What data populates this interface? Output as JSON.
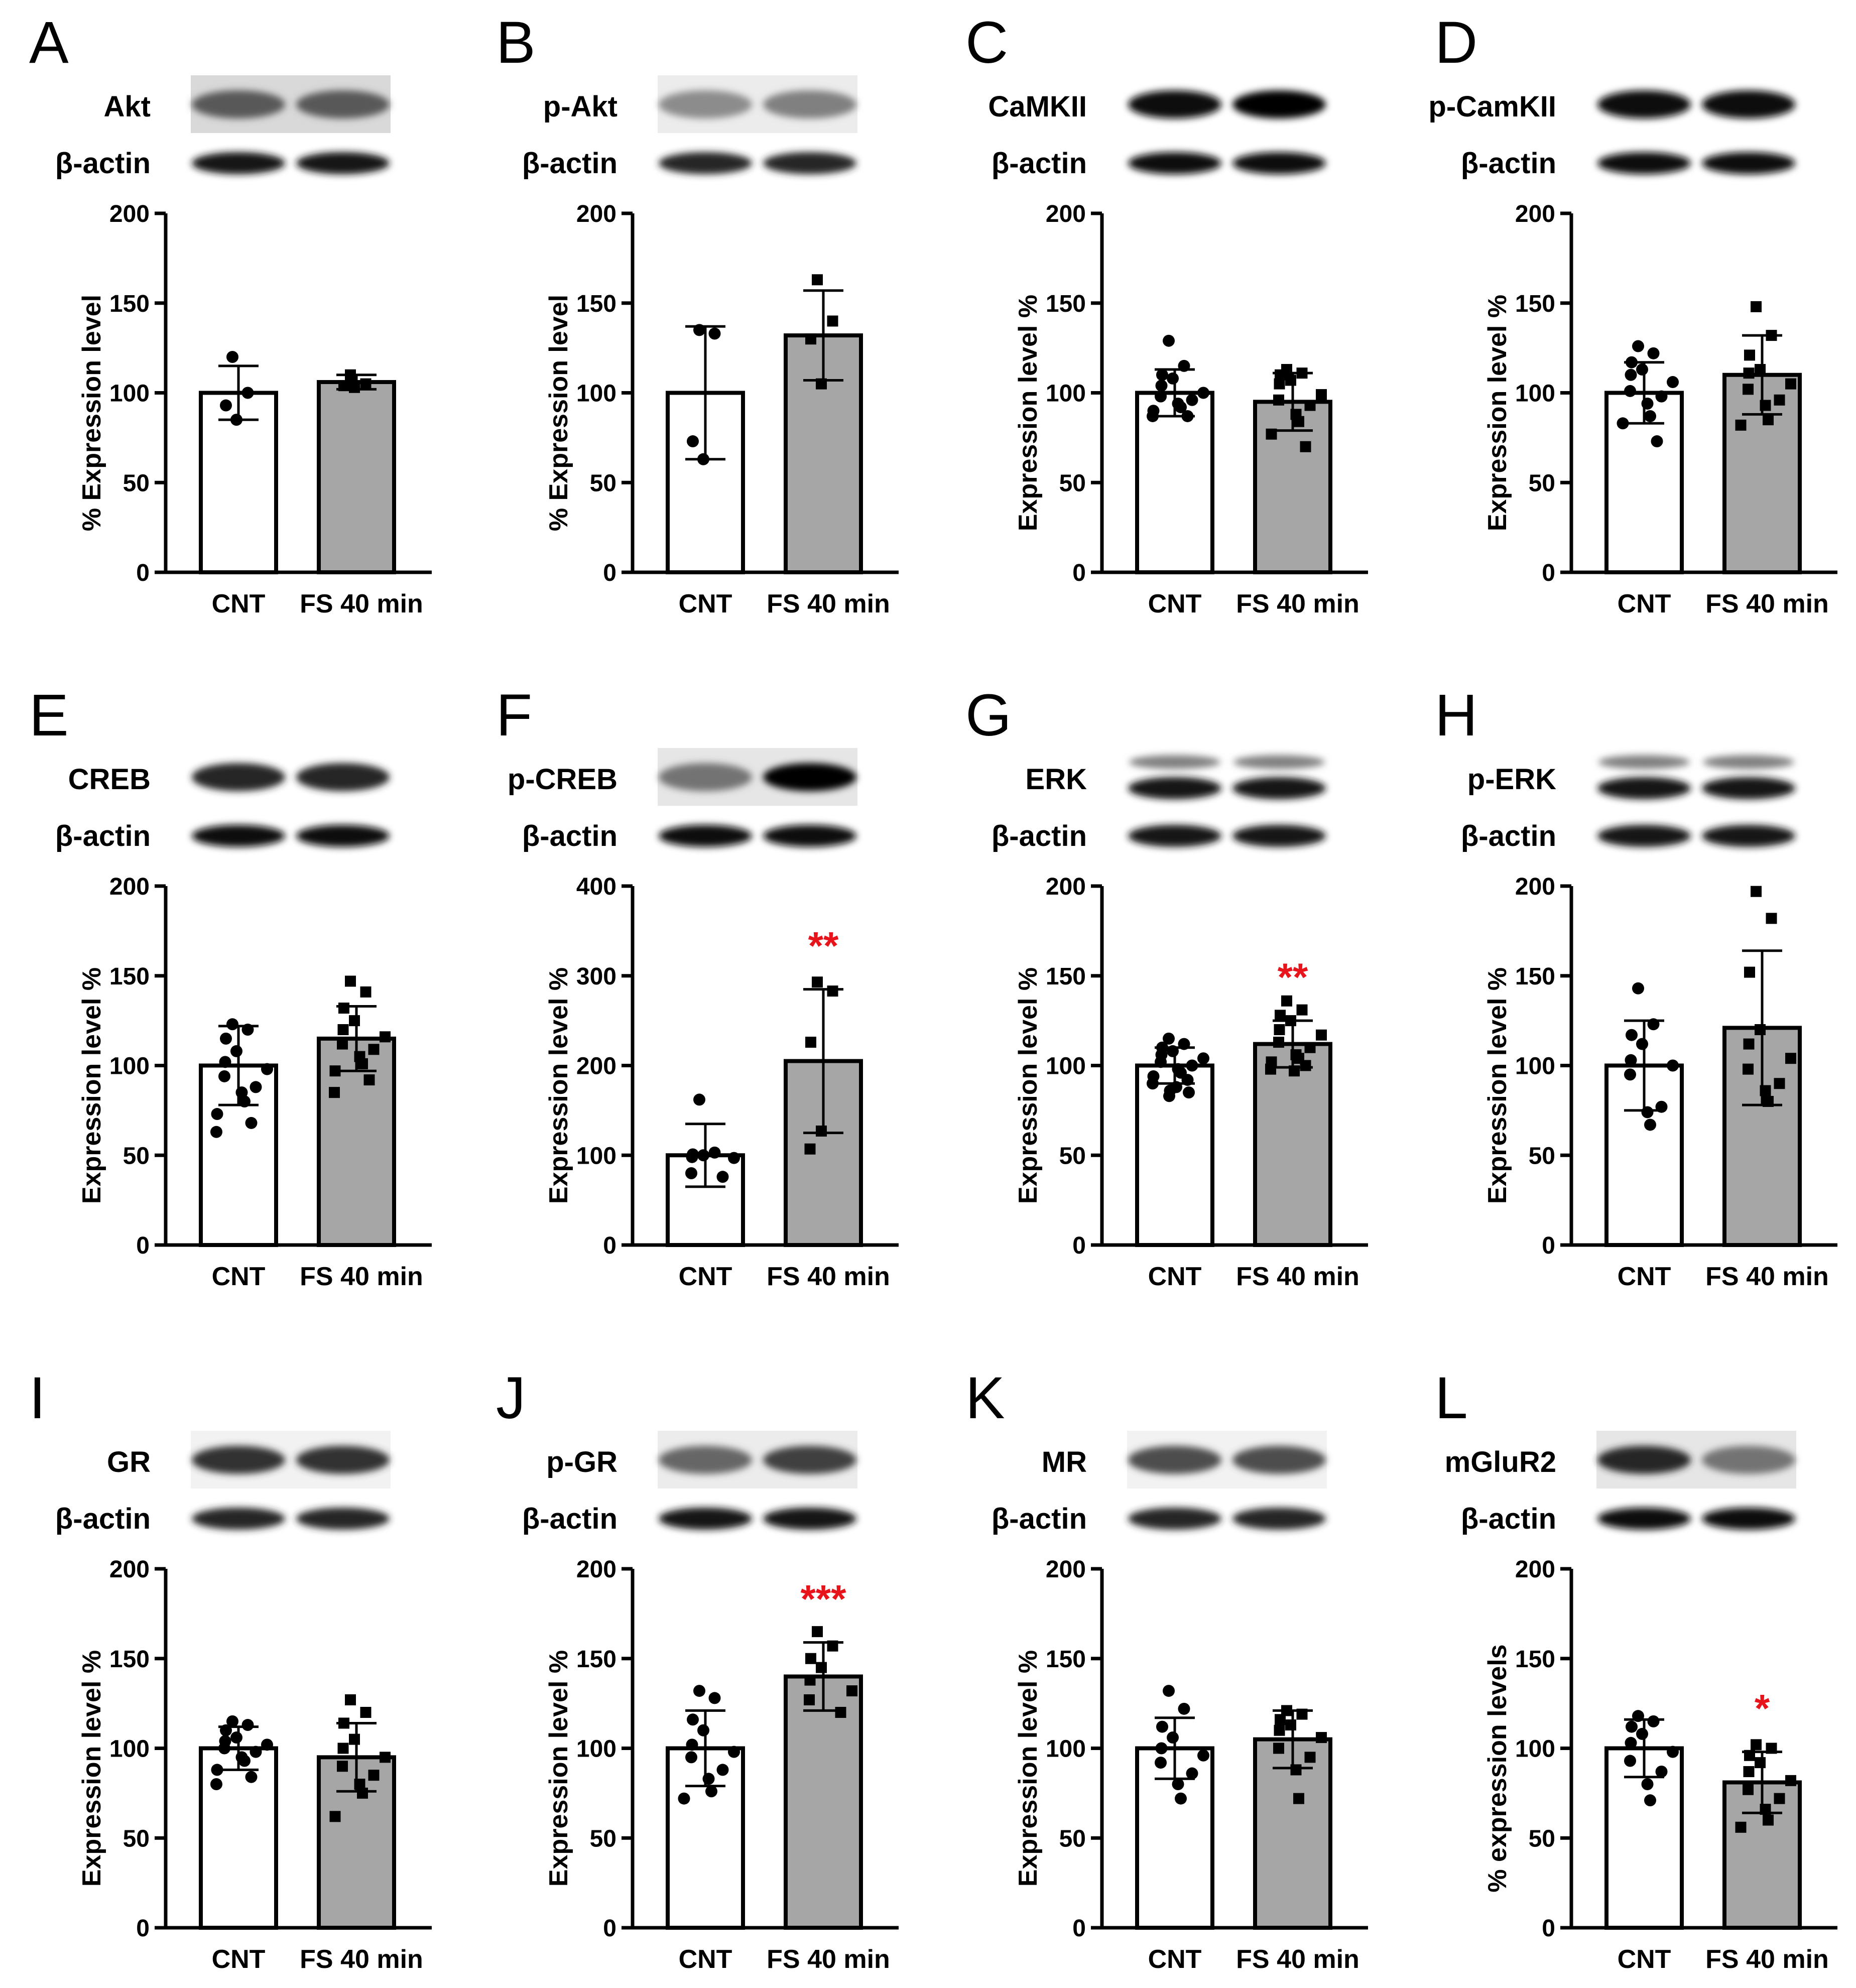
{
  "figure": {
    "colors": {
      "bar_cnt": "#ffffff",
      "bar_fs": "#a6a6a6",
      "outline": "#000000",
      "significance": "#e8141b"
    },
    "blot_secondary_label": "β-actin",
    "categories": [
      "CNT",
      "FS 40 min"
    ]
  },
  "chart_data": [
    {
      "panel": "A",
      "protein": "Akt",
      "type": "bar",
      "ylabel": "% Expression level",
      "ylim": [
        0,
        200
      ],
      "yticks": [
        "0",
        "50",
        "100",
        "150",
        "200"
      ],
      "categories": [
        "CNT",
        "FS 40 min"
      ],
      "values": [
        100,
        106
      ],
      "errors": [
        15,
        4
      ],
      "significance": "",
      "points": [
        [
          120,
          100,
          93,
          85
        ],
        [
          110,
          105,
          104,
          103
        ]
      ],
      "blot": {
        "bands": 1,
        "background": "#d9d9d9",
        "intensity": [
          0.65,
          0.65
        ],
        "actin_intensity": [
          0.9,
          0.9
        ]
      }
    },
    {
      "panel": "B",
      "protein": "p-Akt",
      "type": "bar",
      "ylabel": "% Expression level",
      "ylim": [
        0,
        200
      ],
      "yticks": [
        "0",
        "50",
        "100",
        "150",
        "200"
      ],
      "categories": [
        "CNT",
        "FS 40 min"
      ],
      "values": [
        100,
        132
      ],
      "errors": [
        37,
        25
      ],
      "significance": "",
      "points": [
        [
          135,
          133,
          73,
          63
        ],
        [
          163,
          140,
          130,
          105
        ]
      ],
      "blot": {
        "bands": 1,
        "background": "#ececec",
        "intensity": [
          0.45,
          0.5
        ],
        "actin_intensity": [
          0.85,
          0.85
        ]
      }
    },
    {
      "panel": "C",
      "protein": "CaMKII",
      "type": "bar",
      "ylabel": "Expression level %",
      "ylim": [
        0,
        200
      ],
      "yticks": [
        "0",
        "50",
        "100",
        "150",
        "200"
      ],
      "categories": [
        "CNT",
        "FS 40 min"
      ],
      "values": [
        100,
        95
      ],
      "errors": [
        13,
        16
      ],
      "significance": "",
      "points": [
        [
          129,
          115,
          110,
          108,
          104,
          100,
          98,
          96,
          94,
          92,
          90,
          87,
          87
        ],
        [
          113,
          111,
          110,
          107,
          105,
          99,
          96,
          93,
          88,
          84,
          77,
          70
        ]
      ],
      "blot": {
        "bands": 1,
        "background": "#ffffff",
        "intensity": [
          0.95,
          0.98
        ],
        "actin_intensity": [
          0.95,
          0.95
        ]
      }
    },
    {
      "panel": "D",
      "protein": "p-CamKII",
      "type": "bar",
      "ylabel": "Expression level %",
      "ylim": [
        0,
        200
      ],
      "yticks": [
        "0",
        "50",
        "100",
        "150",
        "200"
      ],
      "categories": [
        "CNT",
        "FS 40 min"
      ],
      "values": [
        100,
        110
      ],
      "errors": [
        17,
        22
      ],
      "significance": "",
      "points": [
        [
          126,
          122,
          117,
          113,
          110,
          106,
          101,
          98,
          94,
          87,
          83,
          73
        ],
        [
          148,
          132,
          121,
          113,
          111,
          105,
          102,
          96,
          93,
          85,
          82
        ]
      ],
      "blot": {
        "bands": 1,
        "background": "#ffffff",
        "intensity": [
          0.95,
          0.95
        ],
        "actin_intensity": [
          0.95,
          0.95
        ]
      }
    },
    {
      "panel": "E",
      "protein": "CREB",
      "type": "bar",
      "ylabel": "Expression level %",
      "ylim": [
        0,
        200
      ],
      "yticks": [
        "0",
        "50",
        "100",
        "150",
        "200"
      ],
      "categories": [
        "CNT",
        "FS 40 min"
      ],
      "values": [
        100,
        115
      ],
      "errors": [
        22,
        18
      ],
      "significance": "",
      "points": [
        [
          123,
          120,
          115,
          108,
          102,
          98,
          94,
          88,
          85,
          80,
          73,
          68,
          63
        ],
        [
          147,
          141,
          132,
          125,
          120,
          116,
          112,
          109,
          105,
          101,
          97,
          92,
          85
        ]
      ],
      "blot": {
        "bands": 1,
        "background": "#ffffff",
        "intensity": [
          0.85,
          0.85
        ],
        "actin_intensity": [
          0.95,
          0.95
        ]
      }
    },
    {
      "panel": "F",
      "protein": "p-CREB",
      "type": "bar",
      "ylabel": "Expression level %",
      "ylim": [
        0,
        400
      ],
      "yticks": [
        "0",
        "100",
        "200",
        "300",
        "400"
      ],
      "categories": [
        "CNT",
        "FS 40 min"
      ],
      "values": [
        100,
        205
      ],
      "errors": [
        35,
        80
      ],
      "significance": "**",
      "points": [
        [
          162,
          103,
          101,
          100,
          98,
          97,
          80,
          76
        ],
        [
          293,
          283,
          226,
          127,
          107
        ]
      ],
      "blot": {
        "bands": 1,
        "background": "#e6e6e6",
        "intensity": [
          0.55,
          0.98
        ],
        "actin_intensity": [
          0.95,
          0.95
        ]
      }
    },
    {
      "panel": "G",
      "protein": "ERK",
      "type": "bar",
      "ylabel": "Expression level %",
      "ylim": [
        0,
        200
      ],
      "yticks": [
        "0",
        "50",
        "100",
        "150",
        "200"
      ],
      "categories": [
        "CNT",
        "FS 40 min"
      ],
      "values": [
        100,
        112
      ],
      "errors": [
        10,
        13
      ],
      "significance": "**",
      "points": [
        [
          115,
          112,
          110,
          108,
          106,
          104,
          102,
          100,
          98,
          96,
          94,
          92,
          90,
          88,
          86,
          85,
          83
        ],
        [
          136,
          131,
          128,
          125,
          120,
          117,
          113,
          110,
          106,
          104,
          102,
          100,
          98,
          97
        ]
      ],
      "blot": {
        "bands": 2,
        "background": "#ffffff",
        "intensity": [
          0.9,
          0.9
        ],
        "actin_intensity": [
          0.9,
          0.9
        ]
      }
    },
    {
      "panel": "H",
      "protein": "p-ERK",
      "type": "bar",
      "ylabel": "Expression level %",
      "ylim": [
        0,
        200
      ],
      "yticks": [
        "0",
        "50",
        "100",
        "150",
        "200"
      ],
      "categories": [
        "CNT",
        "FS 40 min"
      ],
      "values": [
        100,
        121
      ],
      "errors": [
        25,
        43
      ],
      "significance": "",
      "points": [
        [
          143,
          123,
          117,
          112,
          103,
          100,
          95,
          77,
          74,
          67
        ],
        [
          197,
          182,
          152,
          120,
          112,
          104,
          98,
          90,
          86,
          80
        ]
      ],
      "blot": {
        "bands": 2,
        "background": "#ffffff",
        "intensity": [
          0.9,
          0.9
        ],
        "actin_intensity": [
          0.9,
          0.9
        ]
      }
    },
    {
      "panel": "I",
      "protein": "GR",
      "type": "bar",
      "ylabel": "Expression level %",
      "ylim": [
        0,
        200
      ],
      "yticks": [
        "0",
        "50",
        "100",
        "150",
        "200"
      ],
      "categories": [
        "CNT",
        "FS 40 min"
      ],
      "values": [
        100,
        95
      ],
      "errors": [
        12,
        19
      ],
      "significance": "",
      "points": [
        [
          115,
          113,
          110,
          106,
          104,
          102,
          100,
          98,
          95,
          93,
          88,
          84,
          80
        ],
        [
          127,
          120,
          114,
          105,
          100,
          95,
          90,
          85,
          80,
          75,
          62
        ]
      ],
      "blot": {
        "bands": 1,
        "background": "#f2f2f2",
        "intensity": [
          0.8,
          0.8
        ],
        "actin_intensity": [
          0.85,
          0.85
        ]
      }
    },
    {
      "panel": "J",
      "protein": "p-GR",
      "type": "bar",
      "ylabel": "Expression level %",
      "ylim": [
        0,
        200
      ],
      "yticks": [
        "0",
        "50",
        "100",
        "150",
        "200"
      ],
      "categories": [
        "CNT",
        "FS 40 min"
      ],
      "values": [
        100,
        140
      ],
      "errors": [
        21,
        19
      ],
      "significance": "***",
      "points": [
        [
          132,
          128,
          116,
          110,
          102,
          98,
          95,
          88,
          83,
          76,
          72
        ],
        [
          165,
          157,
          150,
          145,
          138,
          132,
          127,
          120
        ]
      ],
      "blot": {
        "bands": 1,
        "background": "#ececec",
        "intensity": [
          0.6,
          0.75
        ],
        "actin_intensity": [
          0.9,
          0.9
        ]
      }
    },
    {
      "panel": "K",
      "protein": "MR",
      "type": "bar",
      "ylabel": "Expression level %",
      "ylim": [
        0,
        200
      ],
      "yticks": [
        "0",
        "50",
        "100",
        "150",
        "200"
      ],
      "categories": [
        "CNT",
        "FS 40 min"
      ],
      "values": [
        100,
        105
      ],
      "errors": [
        17,
        16
      ],
      "significance": "",
      "points": [
        [
          132,
          122,
          112,
          106,
          100,
          96,
          92,
          86,
          80,
          72
        ],
        [
          121,
          119,
          116,
          113,
          110,
          106,
          100,
          95,
          88,
          72
        ]
      ],
      "blot": {
        "bands": 1,
        "background": "#f2f2f2",
        "intensity": [
          0.7,
          0.7
        ],
        "actin_intensity": [
          0.85,
          0.85
        ]
      }
    },
    {
      "panel": "L",
      "protein": "mGluR2",
      "type": "bar",
      "ylabel": "% expression levels",
      "ylim": [
        0,
        200
      ],
      "yticks": [
        "0",
        "50",
        "100",
        "150",
        "200"
      ],
      "categories": [
        "CNT",
        "FS 40 min"
      ],
      "values": [
        100,
        81
      ],
      "errors": [
        16,
        17
      ],
      "significance": "*",
      "points": [
        [
          118,
          115,
          112,
          108,
          103,
          98,
          93,
          87,
          80,
          71
        ],
        [
          102,
          100,
          96,
          92,
          87,
          82,
          77,
          72,
          66,
          60,
          56
        ]
      ],
      "blot": {
        "bands": 1,
        "background": "#e6e6e6",
        "intensity": [
          0.85,
          0.55
        ],
        "actin_intensity": [
          0.95,
          0.95
        ]
      }
    }
  ]
}
